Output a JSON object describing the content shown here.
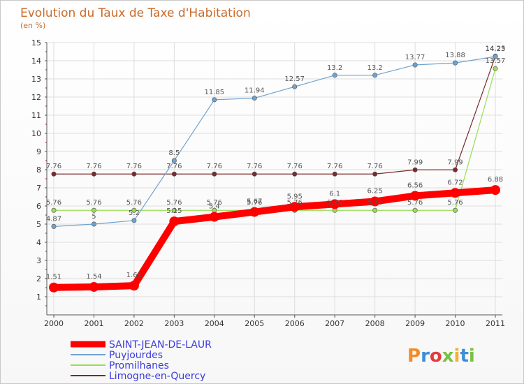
{
  "chart_data": {
    "type": "line",
    "title": "Evolution du Taux de Taxe d'Habitation",
    "subtitle": "(en %)",
    "x": [
      "2000",
      "2001",
      "2002",
      "2003",
      "2004",
      "2005",
      "2006",
      "2007",
      "2008",
      "2009",
      "2010",
      "2011"
    ],
    "ylim": [
      0,
      15
    ],
    "yticks": [
      1,
      2,
      3,
      4,
      5,
      6,
      7,
      8,
      9,
      10,
      11,
      12,
      13,
      14,
      15
    ],
    "grid": true,
    "legend_position": "bottom-left",
    "series": [
      {
        "name": "SAINT-JEAN-DE-LAUR",
        "color": "#ff0000",
        "values": [
          1.51,
          1.54,
          1.61,
          5.15,
          5.4,
          5.67,
          5.95,
          6.1,
          6.25,
          6.56,
          6.72,
          6.88
        ],
        "labels": [
          "1.51",
          "1.54",
          "1.61",
          "5.15",
          "5.4",
          "5.67",
          "5.95",
          "6.1",
          "6.25",
          "6.56",
          "6.72",
          "6.88"
        ]
      },
      {
        "name": "Puyjourdes",
        "color": "#6fa3cf",
        "values": [
          4.87,
          5,
          5.2,
          8.5,
          11.85,
          11.94,
          12.57,
          13.2,
          13.2,
          13.77,
          13.88,
          14.23
        ],
        "labels": [
          "4.87",
          "5",
          "5.2",
          "8.5",
          "11.85",
          "11.94",
          "12.57",
          "13.2",
          "13.2",
          "13.77",
          "13.88",
          "14.23"
        ]
      },
      {
        "name": "Promilhanes",
        "color": "#99dd55",
        "values": [
          5.76,
          5.76,
          5.76,
          5.76,
          5.76,
          5.76,
          5.76,
          5.76,
          5.76,
          5.76,
          5.76,
          13.57
        ],
        "labels": [
          "5.76",
          "5.76",
          "5.76",
          "5.76",
          "5.76",
          "5.76",
          "5.76",
          "5.76",
          "5.76",
          "5.76",
          "5.76",
          "13.57"
        ]
      },
      {
        "name": "Limogne-en-Quercy",
        "color": "#7a2a2a",
        "values": [
          7.76,
          7.76,
          7.76,
          7.76,
          7.76,
          7.76,
          7.76,
          7.76,
          7.76,
          7.99,
          7.99,
          14.25
        ],
        "labels": [
          "7.76",
          "7.76",
          "7.76",
          "7.76",
          "7.76",
          "7.76",
          "7.76",
          "7.76",
          "7.76",
          "7.99",
          "7.99",
          "14.25"
        ]
      }
    ]
  },
  "branding": {
    "logo_text": "Proxiti"
  }
}
